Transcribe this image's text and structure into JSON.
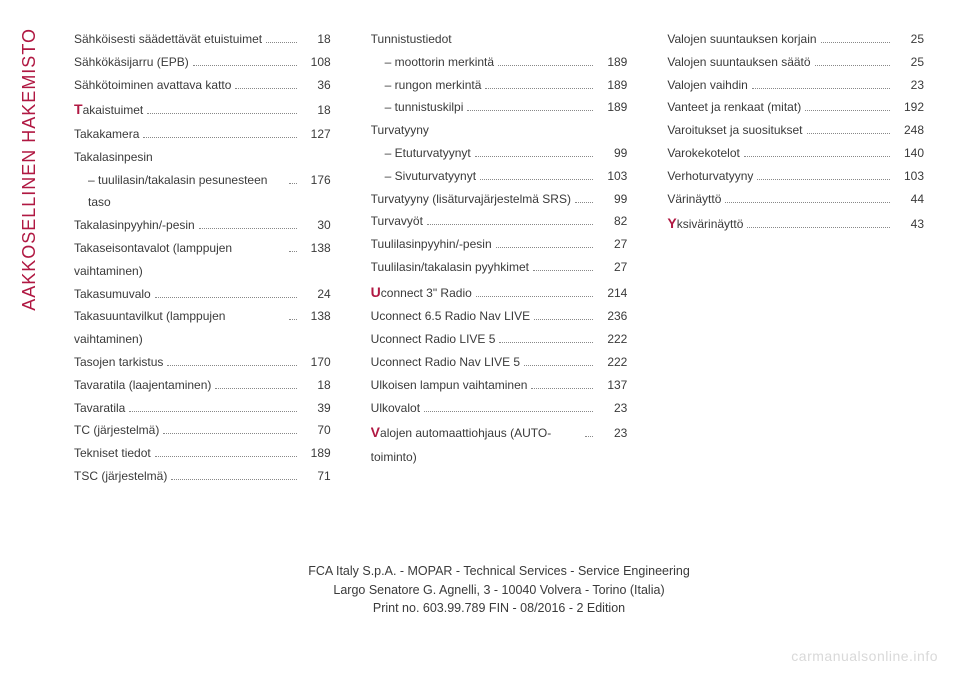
{
  "sideTab": "AAKKOSELLINEN HAKEMISTO",
  "columns": [
    [
      {
        "label": "Sähköisesti säädettävät etuistuimet",
        "page": "18"
      },
      {
        "label": "Sähkökäsijarru (EPB)",
        "page": "108"
      },
      {
        "label": "Sähkötoiminen avattava katto",
        "page": "36"
      },
      {
        "bigLetter": "T",
        "label": "akaistuimet",
        "page": "18"
      },
      {
        "label": "Takakamera",
        "page": "127"
      },
      {
        "label": "Takalasinpesin",
        "noPage": true
      },
      {
        "label": "– tuulilasin/takalasin pesunesteen taso",
        "page": "176",
        "indent": true
      },
      {
        "label": "Takalasinpyyhin/-pesin",
        "page": "30"
      },
      {
        "label": "Takaseisontavalot (lamppujen vaihtaminen)",
        "page": "138"
      },
      {
        "label": "Takasumuvalo",
        "page": "24"
      },
      {
        "label": "Takasuuntavilkut (lamppujen vaihtaminen)",
        "page": "138"
      },
      {
        "label": "Tasojen tarkistus",
        "page": "170"
      },
      {
        "label": "Tavaratila (laajentaminen)",
        "page": "18"
      },
      {
        "label": "Tavaratila",
        "page": "39"
      },
      {
        "label": "TC (järjestelmä)",
        "page": "70"
      },
      {
        "label": "Tekniset tiedot",
        "page": "189"
      },
      {
        "label": "TSC (järjestelmä)",
        "page": "71"
      }
    ],
    [
      {
        "label": "Tunnistustiedot",
        "noPage": true
      },
      {
        "label": "– moottorin merkintä",
        "page": "189",
        "indent": true
      },
      {
        "label": "– rungon merkintä",
        "page": "189",
        "indent": true
      },
      {
        "label": "– tunnistuskilpi",
        "page": "189",
        "indent": true
      },
      {
        "label": "Turvatyyny",
        "noPage": true
      },
      {
        "label": "– Etuturvatyynyt",
        "page": "99",
        "indent": true
      },
      {
        "label": "– Sivuturvatyynyt",
        "page": "103",
        "indent": true
      },
      {
        "label": "Turvatyyny (lisäturvajärjestelmä SRS)",
        "page": "99"
      },
      {
        "label": "Turvavyöt",
        "page": "82"
      },
      {
        "label": "Tuulilasinpyyhin/-pesin",
        "page": "27"
      },
      {
        "label": "Tuulilasin/takalasin pyyhkimet",
        "page": "27"
      },
      {
        "bigLetter": "U",
        "label": "connect 3\" Radio",
        "page": "214"
      },
      {
        "label": "Uconnect 6.5 Radio Nav LIVE",
        "page": "236"
      },
      {
        "label": "Uconnect Radio LIVE 5",
        "page": "222"
      },
      {
        "label": "Uconnect Radio Nav LIVE 5",
        "page": "222"
      },
      {
        "label": "Ulkoisen lampun vaihtaminen",
        "page": "137"
      },
      {
        "label": "Ulkovalot",
        "page": "23"
      },
      {
        "bigLetter": "V",
        "label": "alojen automaattiohjaus (AUTO-toiminto)",
        "page": "23"
      }
    ],
    [
      {
        "label": "Valojen suuntauksen korjain",
        "page": "25"
      },
      {
        "label": "Valojen suuntauksen säätö",
        "page": "25"
      },
      {
        "label": "Valojen vaihdin",
        "page": "23"
      },
      {
        "label": "Vanteet ja renkaat (mitat)",
        "page": "192"
      },
      {
        "label": "Varoitukset ja suositukset",
        "page": "248"
      },
      {
        "label": "Varokekotelot",
        "page": "140"
      },
      {
        "label": "Verhoturvatyyny",
        "page": "103"
      },
      {
        "label": "Värinäyttö",
        "page": "44"
      },
      {
        "bigLetter": "Y",
        "label": "ksivärinäyttö",
        "page": "43"
      }
    ]
  ],
  "footer": {
    "line1": "FCA Italy S.p.A. - MOPAR - Technical Services - Service Engineering",
    "line2": "Largo Senatore G. Agnelli, 3 - 10040 Volvera - Torino (Italia)",
    "line3": "Print no. 603.99.789 FIN - 08/2016 - 2 Edition"
  },
  "watermark": "carmanualsonline.info",
  "colors": {
    "accent": "#b01842",
    "text": "#3a3a3a",
    "watermark": "#d9d9d9"
  }
}
